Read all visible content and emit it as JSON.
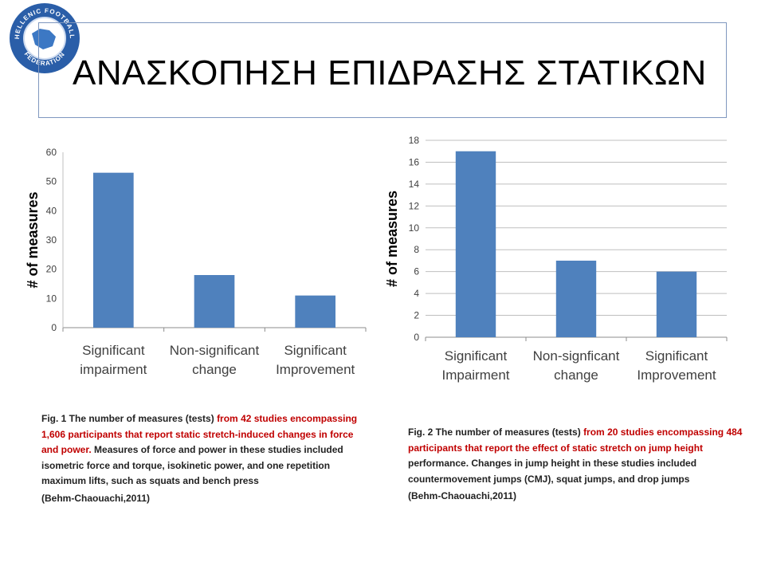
{
  "logo": {
    "text_top": "HELLENIC FOOTBALL",
    "text_bottom": "FEDERATION",
    "colors": {
      "outer": "#2a5ea8",
      "inner": "#ffffff",
      "accent": "#3c78c4"
    }
  },
  "slide": {
    "title": "ΑΝΑΣΚΟΠΗΣΗ ΕΠΙΔΡΑΣΗΣ ΣΤΑΤΙΚΩΝ"
  },
  "chart_data": [
    {
      "type": "bar",
      "categories": [
        [
          "Significant",
          "impairment"
        ],
        [
          "Non-significant",
          "change"
        ],
        [
          "Significant",
          "Improvement"
        ]
      ],
      "values": [
        53,
        18,
        11
      ],
      "ylabel": "# of measures",
      "ylim": [
        0,
        60
      ],
      "yticks": [
        0,
        10,
        20,
        30,
        40,
        50,
        60
      ],
      "grid": false,
      "bar_color": "#4f81bd"
    },
    {
      "type": "bar",
      "categories": [
        [
          "Significant",
          "Impairment"
        ],
        [
          "Non-signficant",
          "change"
        ],
        [
          "Significant",
          "Improvement"
        ]
      ],
      "values": [
        17,
        7,
        6
      ],
      "ylabel": "# of measures",
      "ylim": [
        0,
        18
      ],
      "yticks": [
        0,
        2,
        4,
        6,
        8,
        10,
        12,
        14,
        16,
        18
      ],
      "grid": true,
      "bar_color": "#4f81bd"
    }
  ],
  "captions": {
    "fig1": {
      "lead": "Fig. 1 The number of measures (tests) ",
      "red": "from 42 studies encompassing 1,606 participants that report static stretch-induced changes in force and power.",
      "rest": " Measures of force and power in these studies included isometric force and torque, isokinetic power, and one repetition maximum lifts, such as squats and bench press",
      "citation": "(Behm-Chaouachi,2011)"
    },
    "fig2": {
      "lead": "Fig. 2 The number of measures (tests) ",
      "red": "from 20 studies encompassing 484 participants that report the effect of static stretch on jump height",
      "rest": " performance. Changes in jump height in these studies included countermovement jumps (CMJ), squat jumps, and drop jumps",
      "citation": "(Behm-Chaouachi,2011)"
    }
  }
}
